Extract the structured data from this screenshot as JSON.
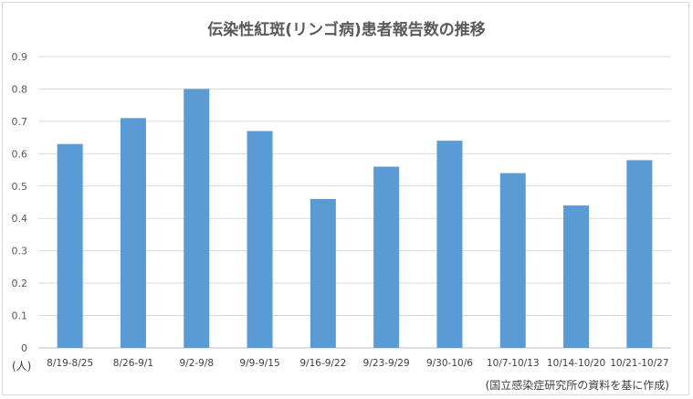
{
  "chart_data": {
    "type": "bar",
    "title": "伝染性紅斑(リンゴ病)患者報告数の推移",
    "categories": [
      "8/19-8/25",
      "8/26-9/1",
      "9/2-9/8",
      "9/9-9/15",
      "9/16-9/22",
      "9/23-9/29",
      "9/30-10/6",
      "10/7-10/13",
      "10/14-10/20",
      "10/21-10/27"
    ],
    "series": [
      {
        "values": [
          0.63,
          0.71,
          0.8,
          0.67,
          0.46,
          0.56,
          0.64,
          0.54,
          0.44,
          0.58
        ]
      }
    ],
    "ylim": [
      0,
      0.9
    ],
    "yticks": [
      "0",
      "0.1",
      "0.2",
      "0.3",
      "0.4",
      "0.5",
      "0.6",
      "0.7",
      "0.8",
      "0.9"
    ],
    "grid": true,
    "ylabel": "(人)",
    "bar_color": "#5b9bd5",
    "grid_color": "#d9d9d9",
    "axis_color": "#bfbfbf"
  },
  "source_note": "(国立感染症研究所の資料を基に作成)"
}
